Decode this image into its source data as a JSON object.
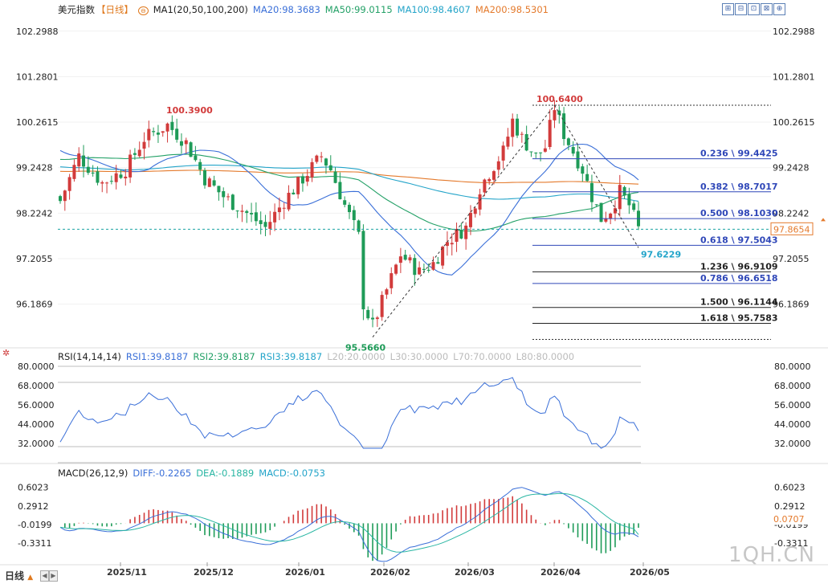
{
  "main_header": {
    "title": "美元指数",
    "period_tag": "【日线】",
    "ma_label": "MA1(20,50,100,200)",
    "ma20": "MA20:98.3683",
    "ma50": "MA50:99.0115",
    "ma100": "MA100:98.4607",
    "ma200": "MA200:98.5301"
  },
  "rsi_header": {
    "label": "RSI(14,14,14)",
    "rsi1": "RSI1:39.8187",
    "rsi2": "RSI2:39.8187",
    "rsi3": "RSI3:39.8187",
    "l20": "L20:20.0000",
    "l30": "L30:30.0000",
    "l70": "L70:70.0000",
    "l80": "L80:80.0000"
  },
  "macd_header": {
    "label": "MACD(26,12,9)",
    "diff": "DIFF:-0.2265",
    "dea": "DEA:-0.1889",
    "macd": "MACD:-0.0753"
  },
  "colors": {
    "up": "#d23b3b",
    "down": "#1e9b58",
    "ma20": "#3a6fd8",
    "ma50": "#22a066",
    "ma100": "#23a4c9",
    "ma200": "#e47a2c",
    "rsi": "#3a6fd8",
    "fib_line": "#2f47b8",
    "macd_diff": "#3a6fd8",
    "macd_dea": "#2ab6a3"
  },
  "toolbar_icons": [
    "zoom-in-icon",
    "zoom-out-icon",
    "fit-icon",
    "settings-icon",
    "expand-icon"
  ],
  "bottom": {
    "period": "日线",
    "arrow_left": "◀",
    "arrow_right": "▶"
  },
  "watermark": "1QH.CN",
  "chart_data": [
    {
      "type": "candlestick",
      "title": "美元指数",
      "y_ticks": [
        "102.2988",
        "101.2801",
        "100.2615",
        "99.2428",
        "98.2242",
        "97.2055",
        "96.1869"
      ],
      "ylim": [
        95.3,
        102.6
      ],
      "x_ticks": [
        "2025/11",
        "2025/12",
        "2026/01",
        "2026/02",
        "2026/03",
        "2026/04",
        "2026/05"
      ],
      "current_price": "97.8654",
      "annotations": {
        "high1": "100.3900",
        "high2": "100.6400",
        "low1": "95.5660",
        "low2": "97.6229"
      },
      "fibonacci": [
        {
          "label": "0.236 \\ 99.4425",
          "value": 99.4425,
          "style": "solid"
        },
        {
          "label": "0.382 \\ 98.7017",
          "value": 98.7017,
          "style": "solid"
        },
        {
          "label": "0.500 \\ 98.1030",
          "value": 98.103,
          "style": "solid"
        },
        {
          "label": "0.618 \\ 97.5043",
          "value": 97.5043,
          "style": "solid"
        },
        {
          "label": "1.236 \\ 96.9109",
          "value": 96.9109,
          "style": "dark"
        },
        {
          "label": "0.786 \\ 96.6518",
          "value": 96.6518,
          "style": "solid"
        },
        {
          "label": "1.500 \\ 96.1144",
          "value": 96.1144,
          "style": "dark"
        },
        {
          "label": "1.618 \\ 95.7583",
          "value": 95.7583,
          "style": "dark"
        }
      ],
      "fib_top": 100.64,
      "fib_bottom": 95.4
    },
    {
      "type": "line",
      "title": "RSI(14,14,14)",
      "y_ticks": [
        "80.0000",
        "68.0000",
        "56.0000",
        "44.0000",
        "32.0000"
      ],
      "ylim": [
        27,
        82
      ],
      "levels": [
        80,
        70,
        30,
        20
      ],
      "last": 39.8187
    },
    {
      "type": "bar",
      "title": "MACD(26,12,9)",
      "y_ticks": [
        "0.6023",
        "0.2912",
        "-0.0199",
        "-0.3311"
      ],
      "ylim": [
        -0.52,
        0.72
      ],
      "current_label": "0.0707",
      "diff_last": -0.2265,
      "dea_last": -0.1889,
      "macd_last": -0.0753
    }
  ]
}
